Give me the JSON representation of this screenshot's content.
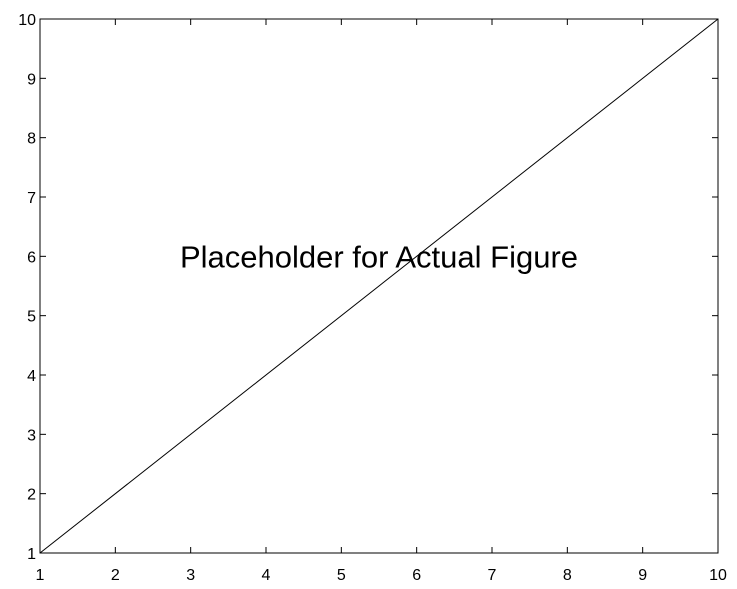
{
  "chart_data": {
    "type": "line",
    "title": "",
    "xlabel": "",
    "ylabel": "",
    "xlim": [
      1,
      10
    ],
    "ylim": [
      1,
      10
    ],
    "x_ticks": [
      1,
      2,
      3,
      4,
      5,
      6,
      7,
      8,
      9,
      10
    ],
    "y_ticks": [
      1,
      2,
      3,
      4,
      5,
      6,
      7,
      8,
      9,
      10
    ],
    "grid": false,
    "series": [
      {
        "x": [
          1,
          10
        ],
        "y": [
          1,
          10
        ],
        "color": "#000000"
      }
    ],
    "annotations": [
      {
        "text": "Placeholder for Actual Figure",
        "x": 5.5,
        "y": 6
      }
    ]
  }
}
